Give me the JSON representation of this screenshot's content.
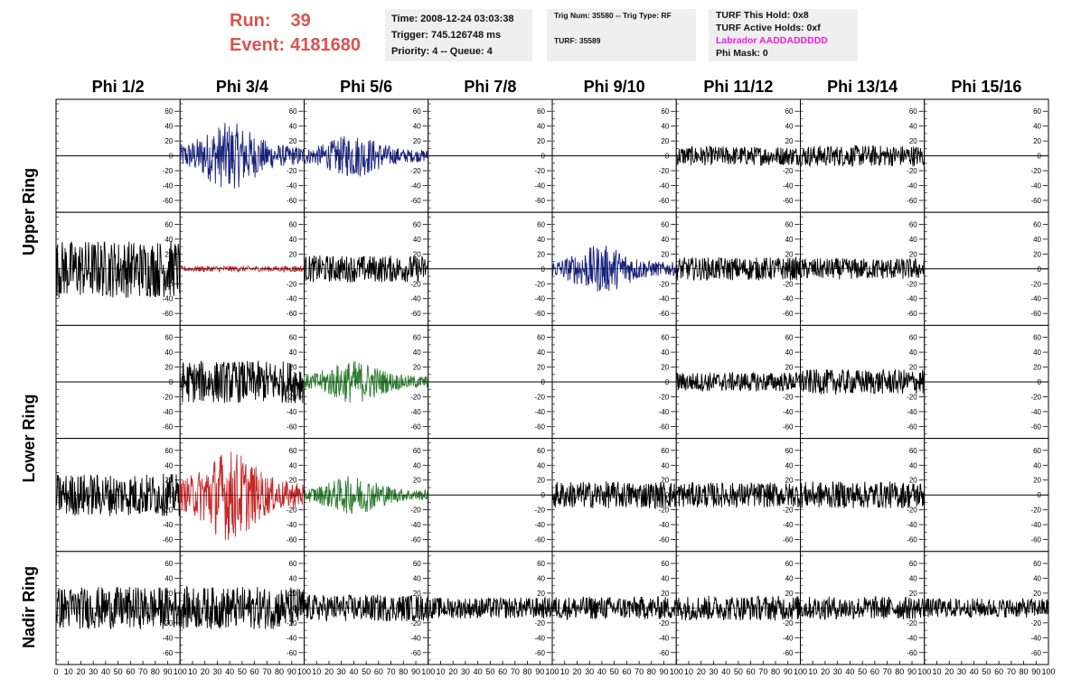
{
  "header": {
    "run_label": "Run:",
    "run_value": "39",
    "event_label": "Event:",
    "event_value": "4181680"
  },
  "info_time": {
    "time": "Time: 2008-12-24 03:03:38",
    "trigger": "Trigger: 745.126748 ms",
    "priority": "Priority: 4 -- Queue: 4"
  },
  "info_trig": {
    "trig": "Trig Num: 35580 -- Trig Type: RF",
    "turf": "TURF: 35589"
  },
  "info_turf": {
    "this_hold": "TURF This Hold: 0x8",
    "active_holds": "TURF Active Holds: 0xf",
    "labrador": "Labrador AADDADDDDD",
    "phi_mask": "Phi Mask: 0"
  },
  "colors": {
    "black": "#000000",
    "blue": "#1a237e",
    "red": "#c62828",
    "green": "#2e7d32",
    "labrador": "#e91ee0",
    "run": "#d9534f"
  },
  "chart_data": {
    "type": "line",
    "columns": [
      "Phi 1/2",
      "Phi 3/4",
      "Phi 5/6",
      "Phi 7/8",
      "Phi 9/10",
      "Phi 11/12",
      "Phi 13/14",
      "Phi 15/16"
    ],
    "rows": [
      "Upper Ring",
      "Upper Ring",
      "Lower Ring",
      "Lower Ring",
      "Nadir Ring"
    ],
    "row_labels": [
      {
        "label": "Upper Ring",
        "spans": [
          0,
          1
        ]
      },
      {
        "label": "Lower Ring",
        "spans": [
          2,
          3
        ]
      },
      {
        "label": "Nadir Ring",
        "spans": [
          4,
          4
        ]
      }
    ],
    "xlim": [
      0,
      100
    ],
    "ylim": [
      -70,
      70
    ],
    "y_ticks": [
      -60,
      -40,
      -20,
      0,
      20,
      40,
      60
    ],
    "x_ticks": [
      0,
      10,
      20,
      30,
      40,
      50,
      60,
      70,
      80,
      90,
      100
    ],
    "panels": [
      [
        {
          "c": "black",
          "a": 0
        },
        {
          "c": "blue",
          "a": 28
        },
        {
          "c": "blue",
          "a": 18
        },
        {
          "c": "black",
          "a": 0
        },
        {
          "c": "black",
          "a": 0
        },
        {
          "c": "black",
          "a": 10
        },
        {
          "c": "black",
          "a": 11
        },
        {
          "c": "black",
          "a": 0
        }
      ],
      [
        {
          "c": "black",
          "a": 30
        },
        {
          "c": "red",
          "a": 3
        },
        {
          "c": "black",
          "a": 14
        },
        {
          "c": "black",
          "a": 0
        },
        {
          "c": "blue",
          "a": 20
        },
        {
          "c": "black",
          "a": 12
        },
        {
          "c": "black",
          "a": 11
        },
        {
          "c": "black",
          "a": 0
        }
      ],
      [
        {
          "c": "black",
          "a": 0
        },
        {
          "c": "black",
          "a": 22
        },
        {
          "c": "green",
          "a": 18
        },
        {
          "c": "black",
          "a": 0
        },
        {
          "c": "black",
          "a": 0
        },
        {
          "c": "black",
          "a": 10
        },
        {
          "c": "black",
          "a": 13
        },
        {
          "c": "black",
          "a": 0
        }
      ],
      [
        {
          "c": "black",
          "a": 22
        },
        {
          "c": "red",
          "a": 38
        },
        {
          "c": "green",
          "a": 16
        },
        {
          "c": "black",
          "a": 0
        },
        {
          "c": "black",
          "a": 14
        },
        {
          "c": "black",
          "a": 13
        },
        {
          "c": "black",
          "a": 14
        },
        {
          "c": "black",
          "a": 0
        }
      ],
      [
        {
          "c": "black",
          "a": 22
        },
        {
          "c": "black",
          "a": 22
        },
        {
          "c": "black",
          "a": 14
        },
        {
          "c": "black",
          "a": 11
        },
        {
          "c": "black",
          "a": 12
        },
        {
          "c": "black",
          "a": 13
        },
        {
          "c": "black",
          "a": 12
        },
        {
          "c": "black",
          "a": 10
        }
      ]
    ]
  }
}
